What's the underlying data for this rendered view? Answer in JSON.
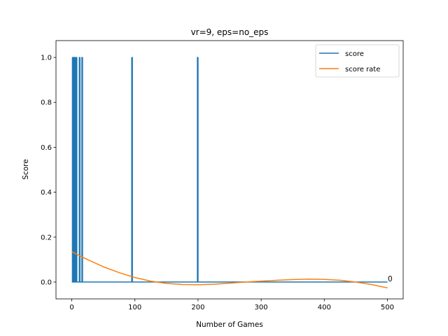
{
  "chart_data": {
    "type": "line",
    "title": "vr=9, eps=no_eps",
    "xlabel": "Number of Games",
    "ylabel": "Score",
    "xlim": [
      -25,
      525
    ],
    "ylim": [
      -0.075,
      1.075
    ],
    "xticks": [
      0,
      100,
      200,
      300,
      400,
      500
    ],
    "xtick_labels": [
      "0",
      "100",
      "200",
      "300",
      "400",
      "500"
    ],
    "yticks": [
      0.0,
      0.2,
      0.4,
      0.6,
      0.8,
      1.0
    ],
    "ytick_labels": [
      "0.0",
      "0.2",
      "0.4",
      "0.6",
      "0.8",
      "1.0"
    ],
    "grid": false,
    "legend_position": "top-right",
    "annotation": {
      "text": "0",
      "x": 500,
      "y": 0.0
    },
    "series": [
      {
        "name": "score",
        "color": "#1f77b4",
        "x": [
          0,
          1,
          1,
          2,
          2,
          3,
          3,
          4,
          4,
          5,
          5,
          6,
          6,
          7,
          7,
          8,
          8,
          12,
          12,
          13,
          13,
          16,
          16,
          17,
          17,
          95,
          95,
          96,
          96,
          199,
          199,
          200,
          200,
          500
        ],
        "y": [
          0,
          0,
          1,
          1,
          0,
          0,
          1,
          1,
          0,
          0,
          1,
          1,
          0,
          0,
          1,
          1,
          0,
          0,
          1,
          1,
          0,
          0,
          1,
          1,
          0,
          0,
          1,
          1,
          0,
          0,
          1,
          1,
          0,
          0
        ]
      },
      {
        "name": "score rate",
        "color": "#ff7f0e",
        "x": [
          0,
          25,
          50,
          75,
          100,
          125,
          150,
          175,
          200,
          225,
          250,
          275,
          300,
          325,
          350,
          375,
          400,
          425,
          450,
          475,
          500
        ],
        "y": [
          0.135,
          0.1,
          0.068,
          0.042,
          0.02,
          0.004,
          -0.006,
          -0.011,
          -0.012,
          -0.01,
          -0.005,
          0.0,
          0.004,
          0.008,
          0.011,
          0.013,
          0.012,
          0.008,
          0.0,
          -0.011,
          -0.026
        ]
      }
    ]
  }
}
